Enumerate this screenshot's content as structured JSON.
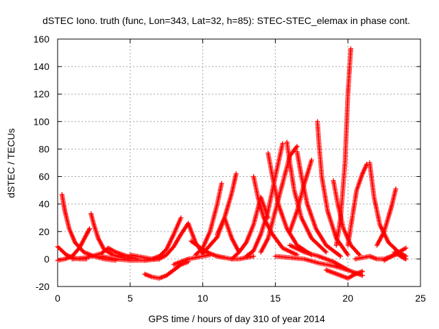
{
  "chart_data": {
    "type": "scatter",
    "title": "dSTEC Iono. truth (func, Lon=343, Lat=32, h=85): STEC-STEC_elemax in phase cont.",
    "xlabel": "GPS time / hours of day 310 of year 2014",
    "ylabel": "dSTEC  / TECUs",
    "xlim": [
      0,
      25
    ],
    "ylim": [
      -20,
      160
    ],
    "xticks": [
      0,
      5,
      10,
      15,
      20,
      25
    ],
    "yticks": [
      -20,
      0,
      20,
      40,
      60,
      80,
      100,
      120,
      140,
      160
    ],
    "grid": true,
    "marker": "+",
    "color": "#ff0000",
    "series": [
      {
        "x": [
          0.0,
          0.3,
          0.6,
          1.0,
          1.5,
          2.0
        ],
        "y": [
          9,
          6,
          3,
          1,
          0,
          0
        ]
      },
      {
        "x": [
          0.0,
          0.5,
          1.0,
          1.5,
          2.0,
          2.2
        ],
        "y": [
          -1,
          0,
          2,
          8,
          18,
          22
        ]
      },
      {
        "x": [
          0.3,
          0.5,
          0.8,
          1.2,
          1.8,
          2.5,
          3.2,
          4.0
        ],
        "y": [
          47,
          35,
          22,
          12,
          5,
          2,
          0,
          -1
        ]
      },
      {
        "x": [
          2.3,
          2.5,
          2.8,
          3.2,
          3.8,
          4.5,
          5.0
        ],
        "y": [
          33,
          25,
          15,
          7,
          3,
          1,
          0
        ]
      },
      {
        "x": [
          1.0,
          2.0,
          3.0,
          3.5,
          4.0,
          4.8,
          5.5
        ],
        "y": [
          0,
          1,
          4,
          8,
          5,
          2,
          0
        ]
      },
      {
        "x": [
          3.0,
          4.0,
          5.0,
          6.0,
          7.0
        ],
        "y": [
          2,
          0,
          -1,
          -1,
          0
        ]
      },
      {
        "x": [
          5.0,
          5.5,
          6.0,
          6.5,
          7.0
        ],
        "y": [
          3,
          2,
          1,
          0,
          0
        ]
      },
      {
        "x": [
          6.0,
          6.5,
          7.0,
          7.5,
          8.0,
          8.5
        ],
        "y": [
          -1,
          0,
          2,
          7,
          18,
          30
        ]
      },
      {
        "x": [
          6.0,
          6.5,
          7.0,
          7.5,
          8.0,
          8.5,
          9.0
        ],
        "y": [
          -11,
          -13,
          -14,
          -12,
          -8,
          -4,
          -2
        ]
      },
      {
        "x": [
          7.0,
          7.5,
          8.0,
          8.5,
          9.0,
          9.5,
          10.0
        ],
        "y": [
          0,
          3,
          9,
          18,
          26,
          12,
          4
        ]
      },
      {
        "x": [
          8.0,
          8.5,
          9.0,
          9.5,
          10.0,
          10.5
        ],
        "y": [
          -4,
          -2,
          0,
          1,
          2,
          3
        ]
      },
      {
        "x": [
          9.2,
          9.6,
          10.0,
          10.5,
          11.0,
          11.5
        ],
        "y": [
          13,
          10,
          7,
          4,
          2,
          1
        ]
      },
      {
        "x": [
          9.5,
          10.0,
          10.5,
          11.0,
          11.3
        ],
        "y": [
          3,
          8,
          20,
          40,
          55
        ]
      },
      {
        "x": [
          10.0,
          10.5,
          11.0,
          11.5,
          12.0,
          12.5
        ],
        "y": [
          4,
          10,
          16,
          30,
          15,
          5
        ]
      },
      {
        "x": [
          11.0,
          11.5,
          12.0,
          12.3
        ],
        "y": [
          18,
          30,
          48,
          62
        ]
      },
      {
        "x": [
          11.0,
          11.5,
          12.0,
          12.5,
          13.0,
          13.5
        ],
        "y": [
          2,
          1,
          0,
          0,
          1,
          2
        ]
      },
      {
        "x": [
          12.0,
          12.5,
          13.0,
          13.5,
          14.0,
          14.5
        ],
        "y": [
          0,
          5,
          12,
          25,
          45,
          30
        ]
      },
      {
        "x": [
          13.5,
          13.8,
          14.2,
          14.8,
          15.5,
          16.5
        ],
        "y": [
          60,
          45,
          30,
          18,
          8,
          3
        ]
      },
      {
        "x": [
          13.0,
          13.5,
          14.0,
          14.5,
          15.0,
          15.5
        ],
        "y": [
          2,
          6,
          18,
          35,
          60,
          84
        ]
      },
      {
        "x": [
          14.5,
          14.8,
          15.2,
          15.8,
          16.5,
          17.5
        ],
        "y": [
          77,
          60,
          40,
          22,
          10,
          3
        ]
      },
      {
        "x": [
          14.0,
          14.5,
          15.0,
          15.5,
          16.0,
          16.5
        ],
        "y": [
          5,
          15,
          35,
          55,
          75,
          82
        ]
      },
      {
        "x": [
          15.8,
          16.0,
          16.3,
          16.8,
          17.5,
          18.5
        ],
        "y": [
          85,
          70,
          50,
          30,
          15,
          5
        ]
      },
      {
        "x": [
          16.5,
          16.8,
          17.2,
          17.8,
          18.5,
          19.5
        ],
        "y": [
          78,
          60,
          40,
          22,
          10,
          2
        ]
      },
      {
        "x": [
          16.0,
          16.5,
          17.0,
          17.3,
          17.5
        ],
        "y": [
          20,
          35,
          55,
          65,
          72
        ]
      },
      {
        "x": [
          17.9,
          18.0,
          18.2,
          18.6,
          19.2,
          20.0
        ],
        "y": [
          100,
          85,
          60,
          35,
          15,
          3
        ]
      },
      {
        "x": [
          15.0,
          16.0,
          17.0,
          18.0,
          19.0,
          20.0
        ],
        "y": [
          2,
          1,
          0,
          -3,
          -5,
          -8
        ]
      },
      {
        "x": [
          16.0,
          17.0,
          18.0,
          19.0,
          20.0,
          21.0
        ],
        "y": [
          10,
          5,
          2,
          -2,
          -8,
          -12
        ]
      },
      {
        "x": [
          19.2,
          19.5,
          19.8,
          20.0,
          20.2
        ],
        "y": [
          10,
          30,
          70,
          120,
          153
        ]
      },
      {
        "x": [
          19.0,
          19.3,
          19.7,
          20.2,
          20.8
        ],
        "y": [
          57,
          40,
          22,
          10,
          3
        ]
      },
      {
        "x": [
          18.5,
          19.0,
          19.5,
          20.0,
          20.5,
          21.0
        ],
        "y": [
          -8,
          -10,
          -12,
          -14,
          -11,
          -9
        ]
      },
      {
        "x": [
          20.0,
          20.3,
          20.6,
          21.0,
          21.3
        ],
        "y": [
          10,
          30,
          50,
          62,
          69
        ]
      },
      {
        "x": [
          20.5,
          21.0,
          21.5,
          22.0,
          22.5,
          23.0,
          23.5
        ],
        "y": [
          0,
          1,
          2,
          0,
          0,
          2,
          4
        ]
      },
      {
        "x": [
          21.5,
          21.8,
          22.2,
          22.8,
          23.5,
          24.0
        ],
        "y": [
          70,
          45,
          25,
          12,
          5,
          2
        ]
      },
      {
        "x": [
          22.0,
          22.5,
          23.0,
          23.3
        ],
        "y": [
          10,
          20,
          38,
          51
        ]
      },
      {
        "x": [
          22.5,
          23.0,
          23.5,
          24.0
        ],
        "y": [
          -1,
          2,
          5,
          8
        ]
      },
      {
        "x": [
          23.2,
          23.5,
          23.8,
          24.0
        ],
        "y": [
          5,
          3,
          1,
          0
        ]
      }
    ]
  }
}
